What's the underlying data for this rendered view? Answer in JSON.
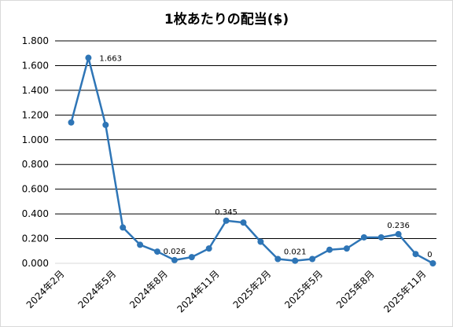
{
  "chart_data": {
    "type": "line",
    "title": "1枚あたりの配当($)",
    "xlabel": "",
    "ylabel": "",
    "ylim": [
      0,
      1.8
    ],
    "y_ticks": [
      "0.000",
      "0.200",
      "0.400",
      "0.600",
      "0.800",
      "1.000",
      "1.200",
      "1.400",
      "1.600",
      "1.800"
    ],
    "grid": true,
    "legend": "none",
    "color": "#2e75b6",
    "x_tick_labels": [
      "2024年2月",
      "2024年5月",
      "2024年8月",
      "2024年11月",
      "2025年2月",
      "2025年5月",
      "2025年8月",
      "2025年11月"
    ],
    "series": [
      {
        "values": [
          1.14,
          1.663,
          1.12,
          0.29,
          0.15,
          0.095,
          0.026,
          0.05,
          0.12,
          0.345,
          0.33,
          0.175,
          0.035,
          0.021,
          0.035,
          0.11,
          0.12,
          0.21,
          0.21,
          0.236,
          0.075,
          0
        ]
      }
    ],
    "data_labels": [
      {
        "index": 1,
        "text": "1.663"
      },
      {
        "index": 6,
        "text": "0.026"
      },
      {
        "index": 9,
        "text": "0.345"
      },
      {
        "index": 13,
        "text": "0.021"
      },
      {
        "index": 19,
        "text": "0.236"
      },
      {
        "index": 21,
        "text": "0"
      }
    ]
  }
}
